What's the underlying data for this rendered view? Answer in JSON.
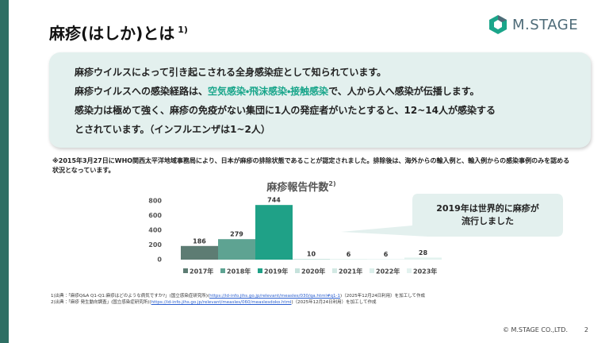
{
  "header": {
    "title": "麻疹(はしか)とは",
    "title_note": "1)",
    "logo": "M.STAGE"
  },
  "summary": {
    "lines": [
      [
        "麻疹ウイルスによって引き起こされる全身感染症として知られています。"
      ],
      [
        "麻疹ウイルスへの感染経路は、",
        "空気感染・飛沫感染・接触感染",
        "で、人から人へ感染が伝播します。"
      ],
      [
        "感染力は極めて強く、麻疹の免疫がない集団に1人の発症者がいたとすると、12~14人が感染する"
      ],
      [
        "とされています。（インフルエンザは1~2人）"
      ]
    ]
  },
  "note": "※2015年3月27日にWHO関西太平洋地域事務局により、日本が麻疹の排除状態であることが認定されました。排除後は、海外からの輸入例と、輸入例からの感染事例のみを認める状況となっています。",
  "chart_data": {
    "type": "bar",
    "title": "麻疹報告件数",
    "title_note": "2)",
    "categories": [
      "2017年",
      "2018年",
      "2019年",
      "2020年",
      "2021年",
      "2022年",
      "2023年"
    ],
    "values": [
      186,
      279,
      744,
      10,
      6,
      6,
      28
    ],
    "colors": [
      "#5d7c73",
      "#5ea392",
      "#1fa187",
      "#c6e2dc",
      "#d3e9e4",
      "#dcefeb",
      "#e3f2ef"
    ],
    "ylim": [
      0,
      800
    ],
    "yticks": [
      0,
      200,
      400,
      600,
      800
    ],
    "grid": false,
    "annotation": [
      "2019年は世界的に麻疹が",
      "流行しました"
    ]
  },
  "footnotes": [
    {
      "text": "1)出典：「麻疹Q&A Q1-Q1:麻疹はどのような病気ですか?」(国立感染症研究所)(",
      "link": "https://id-info.jihs.go.jp/relevant/measles/030/qa.html#q1-1",
      "after": ")（2025年12月24日利用）を加工して作成"
    },
    {
      "text": "2)出典：「麻疹 発生動向調査」(国立感染症研究所)(",
      "link": "https://id-info.jihs.go.jp/relevant/measles/060/measlesdoko.html",
      "after": ")（2025年12月24日利用）を加工して作成"
    }
  ],
  "footer": {
    "copyright": "© M.STAGE CO.,LTD.",
    "page": "2"
  }
}
